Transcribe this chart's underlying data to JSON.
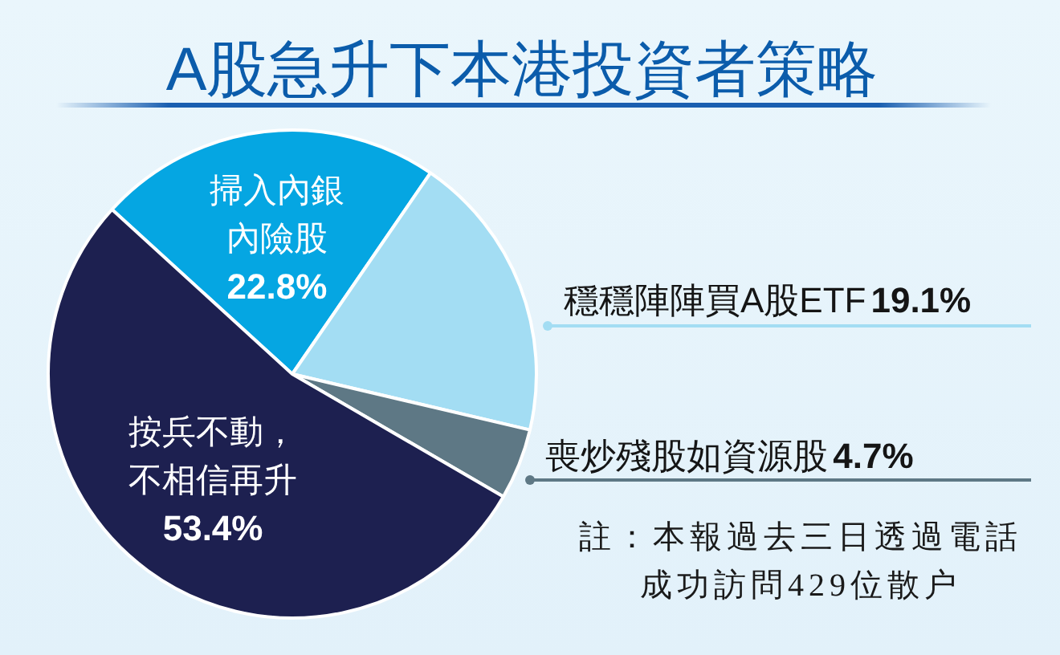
{
  "chart_data": {
    "type": "pie",
    "title": "A股急升下本港投資者策略",
    "categories": [
      "掃入內銀內險股",
      "穩穩陣陣買A股ETF",
      "喪炒殘股如資源股",
      "按兵不動，不相信再升"
    ],
    "values": [
      22.8,
      19.1,
      4.7,
      53.4
    ],
    "colors": [
      "#05a6e2",
      "#a3ddf3",
      "#5e7885",
      "#1d2050"
    ],
    "value_labels": [
      "22.8%",
      "19.1%",
      "4.7%",
      "53.4%"
    ],
    "annotations": [
      "註：本報過去三日透過電話成功訪問429位散户"
    ]
  }
}
